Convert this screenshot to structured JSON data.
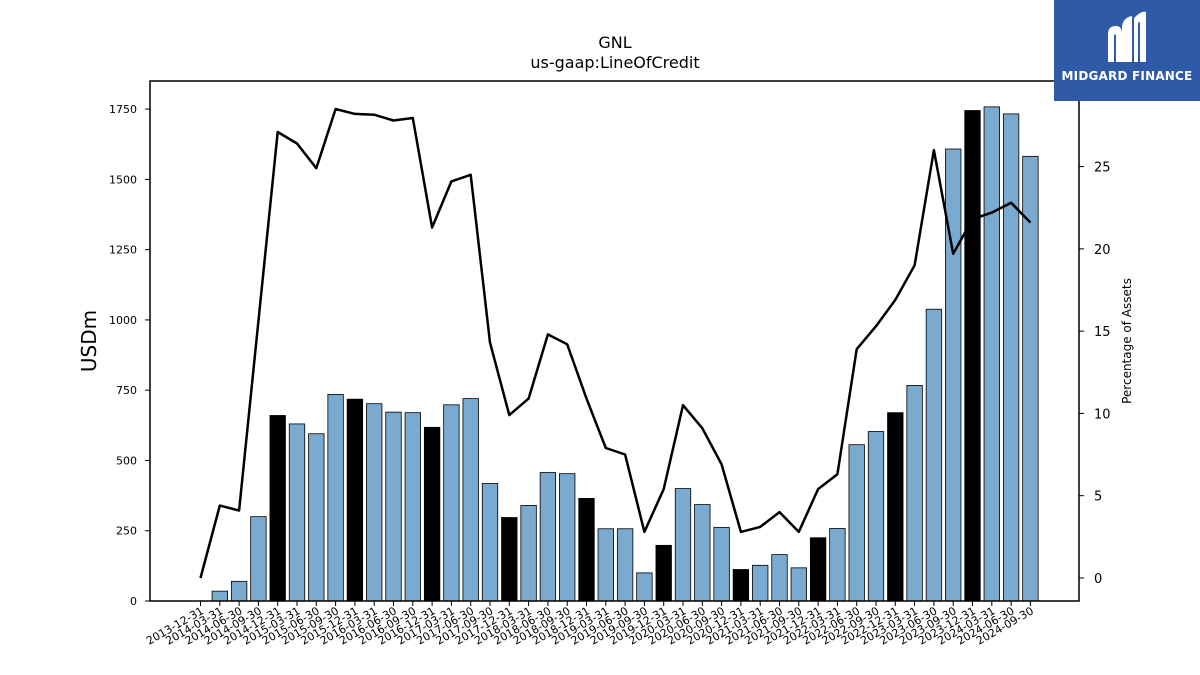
{
  "chart_data": {
    "type": "bar",
    "title": "GNL",
    "subtitle": "us-gaap:LineOfCredit",
    "ylabel": "USDm",
    "y2label": "Percentage of Assets",
    "ylim": [
      0,
      1850
    ],
    "y2lim": [
      -1.4,
      30.2
    ],
    "yticks": [
      0,
      250,
      500,
      750,
      1000,
      1250,
      1500,
      1750
    ],
    "y2ticks": [
      0,
      5,
      10,
      15,
      20,
      25
    ],
    "colors": {
      "bar": "#7aaad0",
      "bar_highlight": "#000000",
      "line": "#000000"
    },
    "categories": [
      "2013-12-31",
      "2014-03-31",
      "2014-06-30",
      "2014-09-30",
      "2014-12-31",
      "2015-03-31",
      "2015-06-30",
      "2015-09-30",
      "2015-12-31",
      "2016-03-31",
      "2016-06-30",
      "2016-09-30",
      "2016-12-31",
      "2017-03-31",
      "2017-06-30",
      "2017-09-30",
      "2017-12-31",
      "2018-03-31",
      "2018-06-30",
      "2018-09-30",
      "2018-12-31",
      "2019-03-31",
      "2019-06-30",
      "2019-09-30",
      "2019-12-31",
      "2020-03-31",
      "2020-06-30",
      "2020-09-30",
      "2020-12-31",
      "2021-03-31",
      "2021-06-30",
      "2021-09-30",
      "2021-12-31",
      "2022-03-31",
      "2022-06-30",
      "2022-09-30",
      "2022-12-31",
      "2023-03-31",
      "2023-06-30",
      "2023-09-30",
      "2023-12-31",
      "2024-03-31",
      "2024-06-30",
      "2024-09-30"
    ],
    "series": [
      {
        "type": "bar",
        "axis": "left",
        "values": [
          0,
          35,
          70,
          300,
          660,
          630,
          595,
          735,
          718,
          702,
          672,
          670,
          618,
          698,
          720,
          418,
          297,
          340,
          457,
          453,
          365,
          257,
          257,
          100,
          198,
          400,
          343,
          262,
          112,
          127,
          165,
          118,
          225,
          258,
          556,
          603,
          670,
          767,
          1038,
          1608,
          1745,
          1758,
          1733,
          1582
        ],
        "highlight": [
          false,
          false,
          false,
          false,
          true,
          false,
          false,
          false,
          true,
          false,
          false,
          false,
          true,
          false,
          false,
          false,
          true,
          false,
          false,
          false,
          true,
          false,
          false,
          false,
          true,
          false,
          false,
          false,
          true,
          false,
          false,
          false,
          true,
          false,
          false,
          false,
          true,
          false,
          false,
          false,
          true,
          false,
          false,
          false
        ]
      },
      {
        "type": "line",
        "axis": "right",
        "values": [
          0,
          4.4,
          4.1,
          15.6,
          27.1,
          26.4,
          24.9,
          28.5,
          28.2,
          28.15,
          27.8,
          27.95,
          21.3,
          24.1,
          24.5,
          14.3,
          9.9,
          10.9,
          14.8,
          14.2,
          10.9,
          7.9,
          7.5,
          2.8,
          5.4,
          10.5,
          9.1,
          6.9,
          2.8,
          3.1,
          4.0,
          2.8,
          5.4,
          6.3,
          13.9,
          15.3,
          16.9,
          19.0,
          26.0,
          19.7,
          21.8,
          22.2,
          22.8,
          21.6
        ]
      }
    ],
    "grid": false,
    "legend": "none"
  },
  "logo": {
    "text": "MIDGARD FINANCE"
  }
}
